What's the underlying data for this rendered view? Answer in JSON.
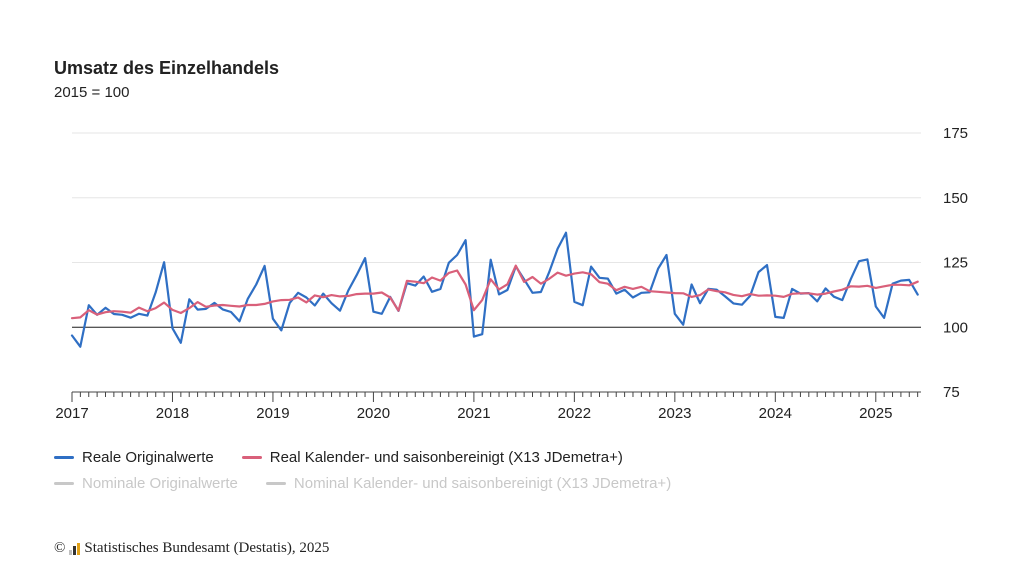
{
  "chart_data": {
    "type": "line",
    "title": "Umsatz des Einzelhandels",
    "subtitle": "2015 = 100",
    "ylim": [
      75,
      175
    ],
    "yticks": [
      75,
      100,
      125,
      150,
      175
    ],
    "reference_line": 100,
    "xlim": [
      2017,
      2025.45
    ],
    "xticks": [
      "2017",
      "2018",
      "2019",
      "2020",
      "2021",
      "2022",
      "2023",
      "2024",
      "2025"
    ],
    "grid": true,
    "legend_position": "bottom",
    "series": [
      {
        "name": "Reale Originalwerte",
        "color": "#2f6fc4",
        "active": true,
        "x": [
          2017.0,
          2017.083,
          2017.167,
          2017.25,
          2017.333,
          2017.417,
          2017.5,
          2017.583,
          2017.667,
          2017.75,
          2017.833,
          2017.917,
          2018.0,
          2018.083,
          2018.167,
          2018.25,
          2018.333,
          2018.417,
          2018.5,
          2018.583,
          2018.667,
          2018.75,
          2018.833,
          2018.917,
          2019.0,
          2019.083,
          2019.167,
          2019.25,
          2019.333,
          2019.417,
          2019.5,
          2019.583,
          2019.667,
          2019.75,
          2019.833,
          2019.917,
          2020.0,
          2020.083,
          2020.167,
          2020.25,
          2020.333,
          2020.417,
          2020.5,
          2020.583,
          2020.667,
          2020.75,
          2020.833,
          2020.917,
          2021.0,
          2021.083,
          2021.167,
          2021.25,
          2021.333,
          2021.417,
          2021.5,
          2021.583,
          2021.667,
          2021.75,
          2021.833,
          2021.917,
          2022.0,
          2022.083,
          2022.167,
          2022.25,
          2022.333,
          2022.417,
          2022.5,
          2022.583,
          2022.667,
          2022.75,
          2022.833,
          2022.917,
          2023.0,
          2023.083,
          2023.167,
          2023.25,
          2023.333,
          2023.417,
          2023.5,
          2023.583,
          2023.667,
          2023.75,
          2023.833,
          2023.917,
          2024.0,
          2024.083,
          2024.167,
          2024.25,
          2024.333,
          2024.417,
          2024.5,
          2024.583,
          2024.667,
          2024.75,
          2024.833,
          2024.917,
          2025.0,
          2025.083,
          2025.167,
          2025.25,
          2025.333,
          2025.417
        ],
        "values": [
          96.8,
          92.5,
          108.5,
          104.8,
          107.5,
          105.1,
          104.8,
          103.7,
          105.2,
          104.5,
          113.5,
          125.1,
          99.6,
          94.0,
          110.8,
          106.8,
          107.1,
          109.4,
          106.9,
          105.9,
          102.3,
          111.0,
          116.5,
          123.7,
          103.3,
          98.8,
          109.4,
          113.3,
          111.5,
          108.4,
          113.0,
          109.3,
          106.4,
          114.2,
          120.1,
          126.7,
          106.0,
          105.2,
          111.7,
          106.3,
          117.0,
          116.1,
          119.6,
          113.7,
          114.8,
          124.9,
          127.9,
          133.6,
          96.4,
          97.3,
          126.1,
          112.7,
          114.4,
          123.5,
          118.5,
          113.3,
          113.6,
          121.3,
          130.3,
          136.5,
          109.8,
          108.5,
          123.4,
          119.1,
          118.8,
          113.0,
          114.5,
          111.5,
          113.3,
          113.5,
          122.6,
          127.9,
          105.2,
          101.0,
          116.5,
          109.3,
          114.8,
          114.5,
          111.9,
          109.2,
          108.7,
          112.2,
          121.3,
          124.0,
          104.0,
          103.6,
          114.8,
          113.0,
          113.2,
          110.0,
          115.0,
          111.8,
          110.5,
          118.5,
          125.5,
          126.2,
          108.0,
          103.6,
          116.8,
          118.0,
          118.3,
          112.6
        ]
      },
      {
        "name": "Real Kalender- und saisonbereinigt (X13 JDemetra+)",
        "color": "#d9607a",
        "active": true,
        "x": [
          2017.0,
          2017.083,
          2017.167,
          2017.25,
          2017.333,
          2017.417,
          2017.5,
          2017.583,
          2017.667,
          2017.75,
          2017.833,
          2017.917,
          2018.0,
          2018.083,
          2018.167,
          2018.25,
          2018.333,
          2018.417,
          2018.5,
          2018.583,
          2018.667,
          2018.75,
          2018.833,
          2018.917,
          2019.0,
          2019.083,
          2019.167,
          2019.25,
          2019.333,
          2019.417,
          2019.5,
          2019.583,
          2019.667,
          2019.75,
          2019.833,
          2019.917,
          2020.0,
          2020.083,
          2020.167,
          2020.25,
          2020.333,
          2020.417,
          2020.5,
          2020.583,
          2020.667,
          2020.75,
          2020.833,
          2020.917,
          2021.0,
          2021.083,
          2021.167,
          2021.25,
          2021.333,
          2021.417,
          2021.5,
          2021.583,
          2021.667,
          2021.75,
          2021.833,
          2021.917,
          2022.0,
          2022.083,
          2022.167,
          2022.25,
          2022.333,
          2022.417,
          2022.5,
          2022.583,
          2022.667,
          2022.75,
          2022.833,
          2022.917,
          2023.0,
          2023.083,
          2023.167,
          2023.25,
          2023.333,
          2023.417,
          2023.5,
          2023.583,
          2023.667,
          2023.75,
          2023.833,
          2023.917,
          2024.0,
          2024.083,
          2024.167,
          2024.25,
          2024.333,
          2024.417,
          2024.5,
          2024.583,
          2024.667,
          2024.75,
          2024.833,
          2024.917,
          2025.0,
          2025.083,
          2025.167,
          2025.25,
          2025.333,
          2025.417
        ],
        "values": [
          103.5,
          103.8,
          106.6,
          104.9,
          105.8,
          106.2,
          106.0,
          105.6,
          107.6,
          106.2,
          107.4,
          109.5,
          106.7,
          105.5,
          107.4,
          109.7,
          107.9,
          108.4,
          108.6,
          108.3,
          108.0,
          108.6,
          108.6,
          109.0,
          110.0,
          110.5,
          110.6,
          111.5,
          109.6,
          112.3,
          111.6,
          112.4,
          111.9,
          112.1,
          112.8,
          113.0,
          113.0,
          113.4,
          111.5,
          106.4,
          117.9,
          117.6,
          117.0,
          119.2,
          118.0,
          121.0,
          121.9,
          116.5,
          106.6,
          110.5,
          118.5,
          114.6,
          116.6,
          123.8,
          117.5,
          119.4,
          116.8,
          118.7,
          121.1,
          119.9,
          120.7,
          121.2,
          120.5,
          117.4,
          116.8,
          114.3,
          115.6,
          114.8,
          115.6,
          113.9,
          113.7,
          113.4,
          113.2,
          113.1,
          111.7,
          112.4,
          114.6,
          113.9,
          113.5,
          112.5,
          112.0,
          112.8,
          112.2,
          112.3,
          112.2,
          111.7,
          112.9,
          113.1,
          113.1,
          112.6,
          113.0,
          113.8,
          114.5,
          115.8,
          115.7,
          116.0,
          115.2,
          115.8,
          116.4,
          116.4,
          116.2,
          117.6
        ]
      },
      {
        "name": "Nominale Originalwerte",
        "color": "#c8c8c8",
        "active": false
      },
      {
        "name": "Nominal Kalender- und saisonbereinigt (X13 JDemetra+)",
        "color": "#c8c8c8",
        "active": false
      }
    ]
  },
  "footer": {
    "copyright": "©",
    "source": "Statistisches Bundesamt (Destatis), 2025",
    "logo_colors": [
      "#c0c0c0",
      "#333333",
      "#e2a218"
    ]
  }
}
